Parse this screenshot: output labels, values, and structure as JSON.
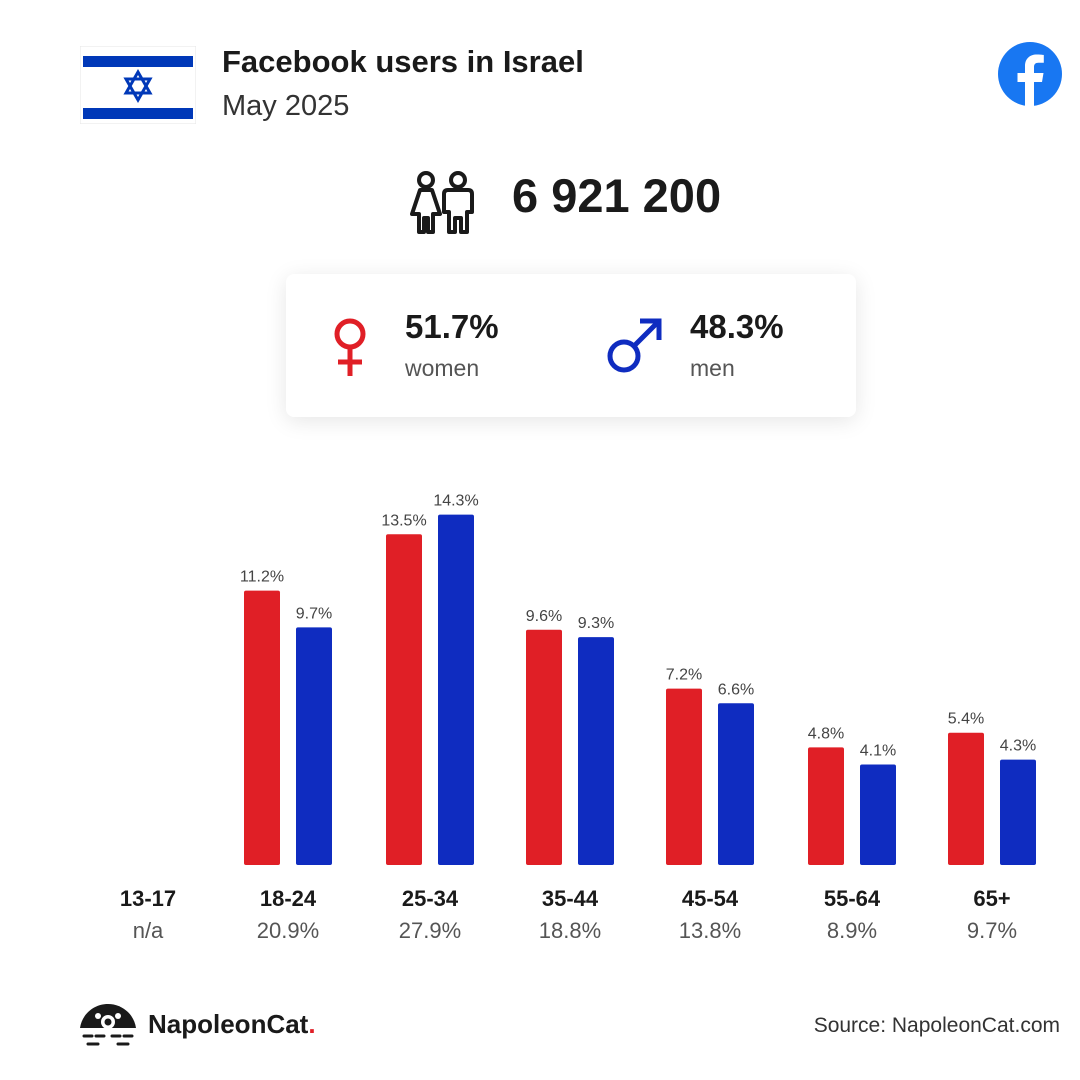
{
  "header": {
    "title": "Facebook users in Israel",
    "subtitle": "May 2025"
  },
  "total_users": "6 921 200",
  "gender": {
    "women": {
      "pct": "51.7%",
      "label": "women"
    },
    "men": {
      "pct": "48.3%",
      "label": "men"
    }
  },
  "colors": {
    "women": "#e01f26",
    "men": "#0f2cc0",
    "facebook": "#1877f2",
    "flag_blue": "#0038b8"
  },
  "icons": [
    "israel-flag-icon",
    "facebook-icon",
    "people-icon",
    "female-icon",
    "male-icon",
    "napoleoncat-logo-icon"
  ],
  "chart_data": {
    "type": "bar",
    "categories": [
      "13-17",
      "18-24",
      "25-34",
      "35-44",
      "45-54",
      "55-64",
      "65+"
    ],
    "category_totals": [
      "n/a",
      "20.9%",
      "27.9%",
      "18.8%",
      "13.8%",
      "8.9%",
      "9.7%"
    ],
    "series": [
      {
        "name": "women",
        "values": [
          null,
          11.2,
          13.5,
          9.6,
          7.2,
          4.8,
          5.4
        ],
        "labels": [
          "",
          "11.2%",
          "13.5%",
          "9.6%",
          "7.2%",
          "4.8%",
          "5.4%"
        ]
      },
      {
        "name": "men",
        "values": [
          null,
          9.7,
          14.3,
          9.3,
          6.6,
          4.1,
          4.3
        ],
        "labels": [
          "",
          "9.7%",
          "14.3%",
          "9.3%",
          "6.6%",
          "4.1%",
          "4.3%"
        ]
      }
    ],
    "ylim": [
      0,
      14.3
    ],
    "grid": false
  },
  "footer": {
    "brand": "NapoleonCat",
    "brand_dot": ".",
    "source": "Source: NapoleonCat.com"
  }
}
